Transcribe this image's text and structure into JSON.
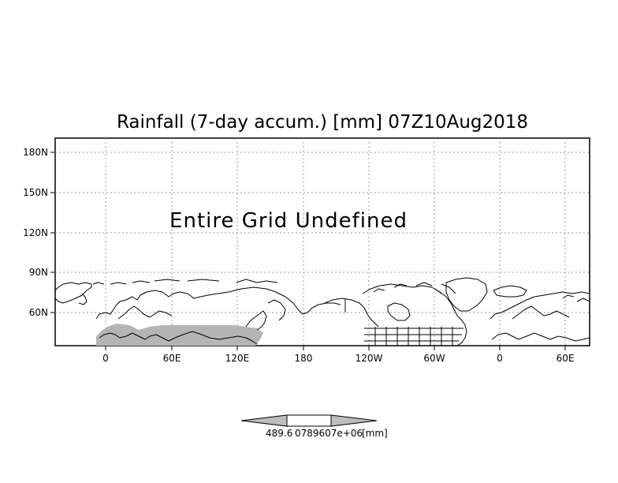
{
  "map": {
    "title": "Rainfall (7-day accum.) [mm] 07Z10Aug2018",
    "message": "Entire Grid Undefined",
    "y_axis": {
      "ticks": [
        "60N",
        "90N",
        "120N",
        "150N",
        "180N"
      ]
    },
    "x_axis": {
      "ticks": [
        "0",
        "60E",
        "120E",
        "180",
        "120W",
        "60W",
        "0",
        "60E"
      ]
    },
    "grid": "dotted",
    "land_shading_color": "#b4b4b4",
    "colorbar": {
      "fill_color": "#bdbdbd",
      "label_left": "489.6",
      "label_overlap": "0789607e+06",
      "label_unit": "[mm]"
    }
  }
}
